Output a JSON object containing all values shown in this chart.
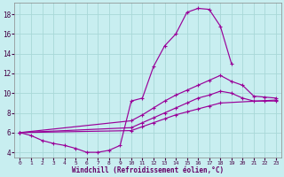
{
  "title": "",
  "xlabel": "Windchill (Refroidissement éolien,°C)",
  "ylabel": "",
  "bg_color": "#c8eef0",
  "grid_color": "#a8d8d8",
  "line_color": "#990099",
  "xlim": [
    -0.5,
    23.5
  ],
  "ylim": [
    3.5,
    19.2
  ],
  "xticks": [
    0,
    1,
    2,
    3,
    4,
    5,
    6,
    7,
    8,
    9,
    10,
    11,
    12,
    13,
    14,
    15,
    16,
    17,
    18,
    19,
    20,
    21,
    22,
    23
  ],
  "yticks": [
    4,
    6,
    8,
    10,
    12,
    14,
    16,
    18
  ],
  "lines": [
    {
      "x": [
        0,
        1,
        2,
        3,
        4,
        5,
        6,
        7,
        8,
        9,
        10,
        11,
        12,
        13,
        14,
        15,
        16,
        17,
        18,
        19
      ],
      "y": [
        6.0,
        5.7,
        5.2,
        4.9,
        4.7,
        4.4,
        4.0,
        4.0,
        4.2,
        4.7,
        9.2,
        9.5,
        12.7,
        14.8,
        16.0,
        18.2,
        18.6,
        18.5,
        16.8,
        13.0
      ]
    },
    {
      "x": [
        0,
        10,
        11,
        12,
        13,
        14,
        15,
        16,
        17,
        18,
        19,
        20,
        21,
        22,
        23
      ],
      "y": [
        6.0,
        7.2,
        7.8,
        8.5,
        9.2,
        9.8,
        10.3,
        10.8,
        11.3,
        11.8,
        11.2,
        10.8,
        9.7,
        9.6,
        9.5
      ]
    },
    {
      "x": [
        0,
        10,
        11,
        12,
        13,
        14,
        15,
        16,
        17,
        18,
        19,
        20,
        21,
        22,
        23
      ],
      "y": [
        6.0,
        6.5,
        7.0,
        7.5,
        8.0,
        8.5,
        9.0,
        9.5,
        9.8,
        10.2,
        10.0,
        9.5,
        9.2,
        9.2,
        9.2
      ]
    },
    {
      "x": [
        0,
        10,
        11,
        12,
        13,
        14,
        15,
        16,
        17,
        18,
        23
      ],
      "y": [
        6.0,
        6.2,
        6.6,
        7.0,
        7.4,
        7.8,
        8.1,
        8.4,
        8.7,
        9.0,
        9.3
      ]
    }
  ]
}
